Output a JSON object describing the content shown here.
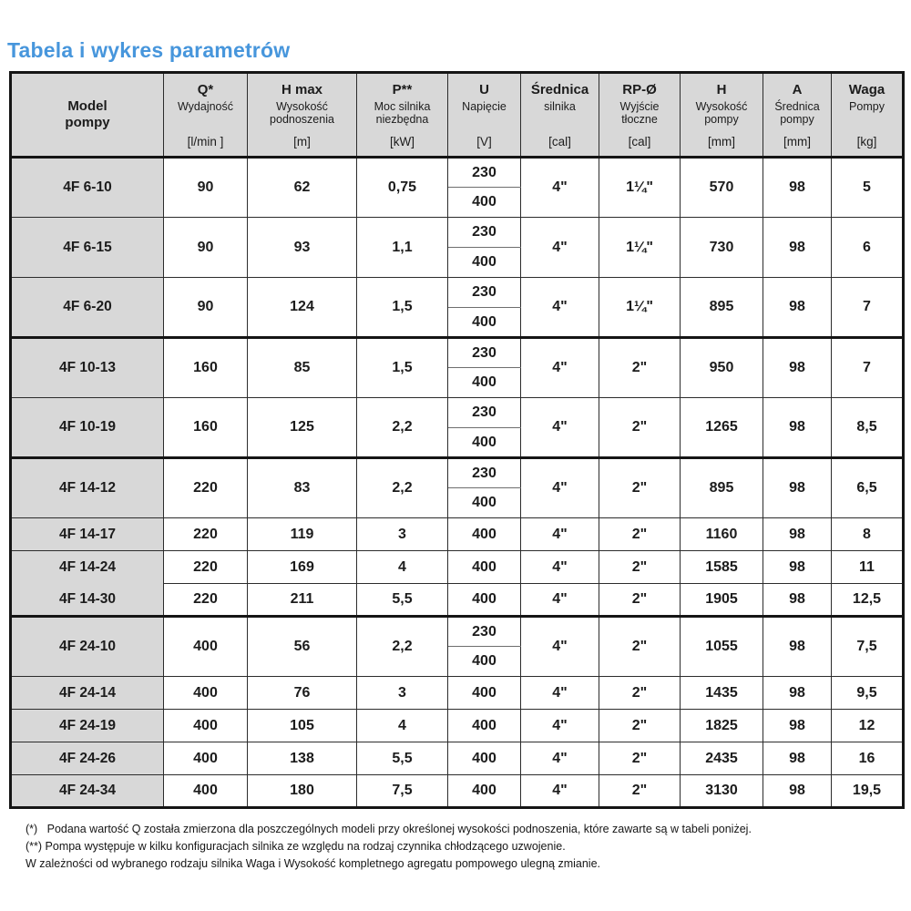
{
  "title": "Tabela i wykres parametrów",
  "colors": {
    "title_blue": "#4796dc",
    "cell_gray": "#d8d8d8",
    "border_black": "#151515"
  },
  "table": {
    "headers": [
      {
        "title": "Model\npompy",
        "sub": "",
        "unit": ""
      },
      {
        "title": "Q*",
        "sub": "Wydajność",
        "unit": "[l/min ]"
      },
      {
        "title": "H max",
        "sub": "Wysokość podnoszenia",
        "unit": "[m]"
      },
      {
        "title": "P**",
        "sub": "Moc silnika niezbędna",
        "unit": "[kW]"
      },
      {
        "title": "U",
        "sub": "Napięcie",
        "unit": "[V]"
      },
      {
        "title": "Średnica",
        "sub": "silnika",
        "unit": "[cal]"
      },
      {
        "title": "RP-Ø",
        "sub": "Wyjście tłoczne",
        "unit": "[cal]"
      },
      {
        "title": "H",
        "sub": "Wysokość pompy",
        "unit": "[mm]"
      },
      {
        "title": "A",
        "sub": "Średnica pompy",
        "unit": "[mm]"
      },
      {
        "title": "Waga",
        "sub": "Pompy",
        "unit": "[kg]"
      }
    ],
    "rows": [
      {
        "model": "4F 6-10",
        "q": "90",
        "hmax": "62",
        "p": "0,75",
        "u": [
          "230",
          "400"
        ],
        "motor": "4\"",
        "rp": "1¼\"",
        "h": "570",
        "a": "98",
        "waga": "5"
      },
      {
        "model": "4F 6-15",
        "q": "90",
        "hmax": "93",
        "p": "1,1",
        "u": [
          "230",
          "400"
        ],
        "motor": "4\"",
        "rp": "1¼\"",
        "h": "730",
        "a": "98",
        "waga": "6"
      },
      {
        "model": "4F 6-20",
        "q": "90",
        "hmax": "124",
        "p": "1,5",
        "u": [
          "230",
          "400"
        ],
        "motor": "4\"",
        "rp": "1¼\"",
        "h": "895",
        "a": "98",
        "waga": "7"
      },
      {
        "model": "4F 10-13",
        "q": "160",
        "hmax": "85",
        "p": "1,5",
        "u": [
          "230",
          "400"
        ],
        "motor": "4\"",
        "rp": "2\"",
        "h": "950",
        "a": "98",
        "waga": "7",
        "group_start": true
      },
      {
        "model": "4F 10-19",
        "q": "160",
        "hmax": "125",
        "p": "2,2",
        "u": [
          "230",
          "400"
        ],
        "motor": "4\"",
        "rp": "2\"",
        "h": "1265",
        "a": "98",
        "waga": "8,5"
      },
      {
        "model": "4F 14-12",
        "q": "220",
        "hmax": "83",
        "p": "2,2",
        "u": [
          "230",
          "400"
        ],
        "motor": "4\"",
        "rp": "2\"",
        "h": "895",
        "a": "98",
        "waga": "6,5",
        "group_start": true
      },
      {
        "model": "4F 14-17",
        "q": "220",
        "hmax": "119",
        "p": "3",
        "u": [
          "400"
        ],
        "motor": "4\"",
        "rp": "2\"",
        "h": "1160",
        "a": "98",
        "waga": "8"
      },
      {
        "model": "4F 14-24",
        "q": "220",
        "hmax": "169",
        "p": "4",
        "u": [
          "400"
        ],
        "motor": "4\"",
        "rp": "2\"",
        "h": "1585",
        "a": "98",
        "waga": "11",
        "model_hide_bottom": true
      },
      {
        "model": "4F 14-30",
        "q": "220",
        "hmax": "211",
        "p": "5,5",
        "u": [
          "400"
        ],
        "motor": "4\"",
        "rp": "2\"",
        "h": "1905",
        "a": "98",
        "waga": "12,5"
      },
      {
        "model": "4F 24-10",
        "q": "400",
        "hmax": "56",
        "p": "2,2",
        "u": [
          "230",
          "400"
        ],
        "motor": "4\"",
        "rp": "2\"",
        "h": "1055",
        "a": "98",
        "waga": "7,5",
        "group_start": true
      },
      {
        "model": "4F 24-14",
        "q": "400",
        "hmax": "76",
        "p": "3",
        "u": [
          "400"
        ],
        "motor": "4\"",
        "rp": "2\"",
        "h": "1435",
        "a": "98",
        "waga": "9,5"
      },
      {
        "model": "4F 24-19",
        "q": "400",
        "hmax": "105",
        "p": "4",
        "u": [
          "400"
        ],
        "motor": "4\"",
        "rp": "2\"",
        "h": "1825",
        "a": "98",
        "waga": "12"
      },
      {
        "model": "4F 24-26",
        "q": "400",
        "hmax": "138",
        "p": "5,5",
        "u": [
          "400"
        ],
        "motor": "4\"",
        "rp": "2\"",
        "h": "2435",
        "a": "98",
        "waga": "16"
      },
      {
        "model": "4F 24-34",
        "q": "400",
        "hmax": "180",
        "p": "7,5",
        "u": [
          "400"
        ],
        "motor": "4\"",
        "rp": "2\"",
        "h": "3130",
        "a": "98",
        "waga": "19,5"
      }
    ]
  },
  "footnotes": [
    "(*)   Podana wartość Q została zmierzona dla poszczególnych modeli przy określonej wysokości podnoszenia, które zawarte są w tabeli poniżej.",
    "(**) Pompa występuje w kilku konfiguracjach silnika ze względu na rodzaj czynnika chłodzącego uzwojenie.",
    "W zależności od wybranego rodzaju silnika Waga i Wysokość kompletnego agregatu pompowego ulegną zmianie."
  ]
}
